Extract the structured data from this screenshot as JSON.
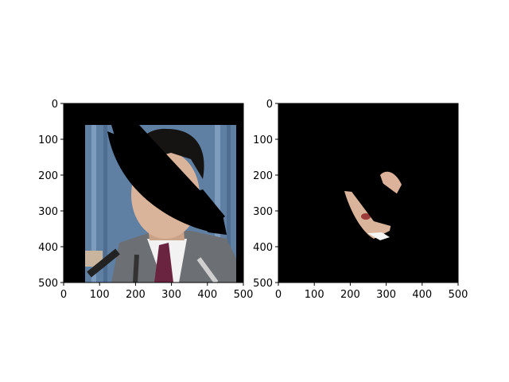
{
  "chart_data": [
    {
      "type": "image",
      "description_free": true,
      "xlim": [
        0,
        500
      ],
      "ylim": [
        500,
        0
      ],
      "xticks": [
        0,
        100,
        200,
        300,
        400,
        500
      ],
      "yticks": [
        0,
        100,
        200,
        300,
        400,
        500
      ],
      "xtick_labels": [
        "0",
        "100",
        "200",
        "300",
        "400",
        "500"
      ],
      "ytick_labels": [
        "0",
        "100",
        "200",
        "300",
        "400",
        "500"
      ],
      "image_region": {
        "x_from": 60,
        "x_to": 500,
        "y_from": 60,
        "y_to": 500
      },
      "colors": {
        "background": "#000000",
        "curtain": "#5f7fa3",
        "suit": "#6c6f73",
        "skin": "#d9b49a",
        "hair": "#161412"
      }
    },
    {
      "type": "image",
      "xlim": [
        0,
        500
      ],
      "ylim": [
        500,
        0
      ],
      "xticks": [
        0,
        100,
        200,
        300,
        400,
        500
      ],
      "yticks": [
        0,
        100,
        200,
        300,
        400,
        500
      ],
      "xtick_labels": [
        "0",
        "100",
        "200",
        "300",
        "400",
        "500"
      ],
      "ytick_labels": [
        "0",
        "100",
        "200",
        "300",
        "400",
        "500"
      ],
      "colors": {
        "background": "#000000",
        "skin": "#d9b49a"
      }
    }
  ]
}
